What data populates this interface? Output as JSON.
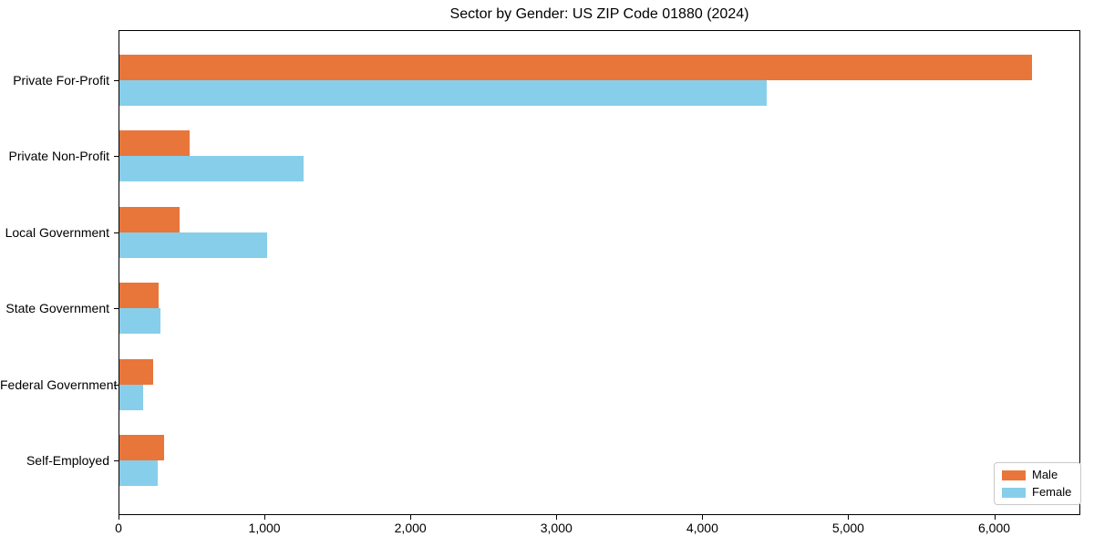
{
  "chart_data": {
    "type": "bar",
    "orientation": "horizontal",
    "title": "Sector by Gender: US ZIP Code 01880 (2024)",
    "categories": [
      "Private For-Profit",
      "Private Non-Profit",
      "Local Government",
      "State Government",
      "Federal Government",
      "Self-Employed"
    ],
    "series": [
      {
        "name": "Male",
        "color": "#E8763B",
        "values": [
          6260,
          490,
          420,
          275,
          240,
          310
        ]
      },
      {
        "name": "Female",
        "color": "#87CEEB",
        "values": [
          4440,
          1270,
          1020,
          290,
          170,
          270
        ]
      }
    ],
    "xlabel": "",
    "ylabel": "",
    "xlim": [
      0,
      6590
    ],
    "x_ticks": [
      {
        "value": 0,
        "label": "0"
      },
      {
        "value": 1000,
        "label": "1,000"
      },
      {
        "value": 2000,
        "label": "2,000"
      },
      {
        "value": 3000,
        "label": "3,000"
      },
      {
        "value": 4000,
        "label": "4,000"
      },
      {
        "value": 5000,
        "label": "5,000"
      },
      {
        "value": 6000,
        "label": "6,000"
      }
    ],
    "grid": false,
    "legend_position": "lower right",
    "axis_color": "#000000",
    "background_color": "#ffffff"
  }
}
